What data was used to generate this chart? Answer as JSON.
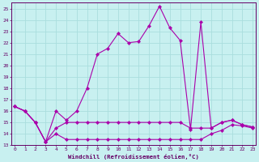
{
  "title": "Windchill (Refroidissement éolien,°C)",
  "bg_color": "#c8f0f0",
  "line_color": "#aa00aa",
  "grid_color": "#aadddd",
  "ylim": [
    13,
    25.5
  ],
  "xlim": [
    -0.3,
    23.3
  ],
  "yticks": [
    13,
    14,
    15,
    16,
    17,
    18,
    19,
    20,
    21,
    22,
    23,
    24,
    25
  ],
  "xticks": [
    0,
    1,
    2,
    3,
    4,
    5,
    6,
    7,
    8,
    9,
    10,
    11,
    12,
    13,
    14,
    15,
    16,
    17,
    18,
    19,
    20,
    21,
    22,
    23
  ],
  "series": [
    [
      16.4,
      16.0,
      15.0,
      13.3,
      16.0,
      15.2,
      16.0,
      18.0,
      21.0,
      21.5,
      22.8,
      22.0,
      22.1,
      23.5,
      25.2,
      23.3,
      22.2,
      14.4,
      23.8,
      14.5,
      15.0,
      15.2,
      14.8,
      14.6
    ],
    [
      16.4,
      16.0,
      15.0,
      13.3,
      14.5,
      15.0,
      15.0,
      15.0,
      15.0,
      15.0,
      15.0,
      15.0,
      15.0,
      15.0,
      15.0,
      15.0,
      15.0,
      14.5,
      14.5,
      14.5,
      15.0,
      15.2,
      14.8,
      14.6
    ],
    [
      16.4,
      16.0,
      15.0,
      13.3,
      14.0,
      13.5,
      13.5,
      13.5,
      13.5,
      13.5,
      13.5,
      13.5,
      13.5,
      13.5,
      13.5,
      13.5,
      13.5,
      13.5,
      13.5,
      14.0,
      14.3,
      14.8,
      14.7,
      14.5
    ]
  ]
}
